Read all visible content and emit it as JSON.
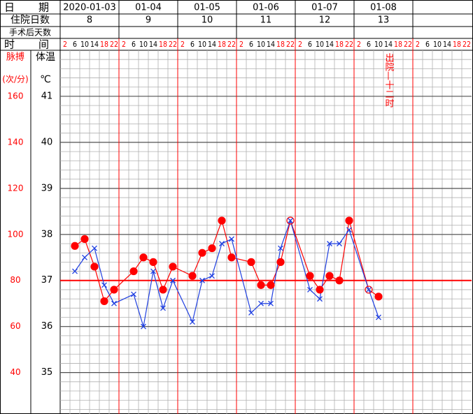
{
  "chart_data": {
    "type": "line",
    "row_labels": {
      "date": "日期",
      "hospital_day": "住院日数",
      "post_op_day": "手术后天数",
      "time": "时间"
    },
    "dates": [
      "2020-01-03",
      "01-04",
      "01-05",
      "01-06",
      "01-07",
      "01-08",
      null
    ],
    "hospital_days": [
      8,
      9,
      10,
      11,
      12,
      13,
      null
    ],
    "times": [
      2,
      6,
      10,
      14,
      18,
      22
    ],
    "time_colors": [
      "#ff0000",
      "#000000",
      "#000000",
      "#000000",
      "#ff0000",
      "#ff0000"
    ],
    "pulse_label": "脉搏",
    "pulse_unit": "(次/分)",
    "temp_label": "体温",
    "temp_unit": "℃",
    "xlim": [
      0,
      168
    ],
    "ylim": [
      34.1,
      42
    ],
    "yticks": [
      41,
      40,
      39,
      38,
      37,
      36,
      35
    ],
    "y2lim": [
      22,
      180
    ],
    "y2ticks": [
      160,
      140,
      120,
      100,
      80,
      60,
      40
    ],
    "reference_line": 37,
    "grid": true,
    "annotation": {
      "text": "出院—十二时",
      "x": 134
    },
    "x": [
      6,
      10,
      14,
      18,
      22,
      30,
      34,
      38,
      42,
      46,
      54,
      58,
      62,
      66,
      70,
      78,
      82,
      86,
      90,
      94,
      102,
      106,
      110,
      114,
      118,
      126,
      130
    ],
    "series": [
      {
        "axis": "y2",
        "color": "#ff0000",
        "marker": "dot",
        "values": [
          95,
          98,
          86,
          71,
          76,
          84,
          90,
          88,
          76,
          86,
          82,
          92,
          94,
          106,
          90,
          88,
          78,
          78,
          88,
          106,
          82,
          76,
          82,
          80,
          106,
          76,
          73
        ]
      },
      {
        "color": "#1f3fe0",
        "marker": "cross",
        "values": [
          37.2,
          37.5,
          37.7,
          36.9,
          36.5,
          36.7,
          36.0,
          37.2,
          36.4,
          37.0,
          36.1,
          37.0,
          37.1,
          37.8,
          37.9,
          36.3,
          36.5,
          36.5,
          37.7,
          38.3,
          36.8,
          36.6,
          37.8,
          37.8,
          38.1,
          36.8,
          36.2
        ]
      }
    ]
  }
}
